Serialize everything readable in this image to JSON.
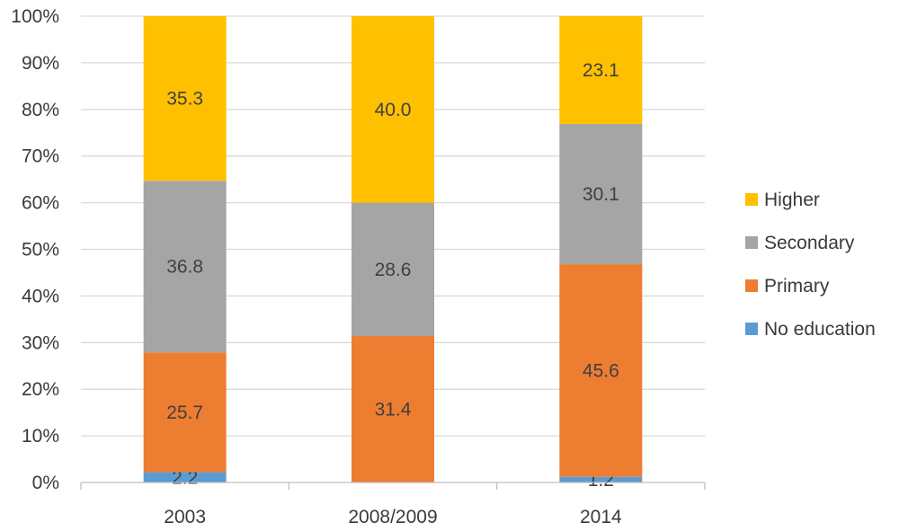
{
  "chart_data": {
    "type": "bar",
    "stacked": true,
    "categories": [
      "2003",
      "2008/2009",
      "2014"
    ],
    "series": [
      {
        "name": "No education",
        "color": "#5B9BD5",
        "values": [
          2.2,
          0,
          1.2
        ],
        "labels": [
          "2.2",
          "",
          "1.2"
        ]
      },
      {
        "name": "Primary",
        "color": "#ED7D31",
        "values": [
          25.7,
          31.4,
          45.6
        ],
        "labels": [
          "25.7",
          "31.4",
          "45.6"
        ]
      },
      {
        "name": "Secondary",
        "color": "#A5A5A5",
        "values": [
          36.8,
          28.6,
          30.1
        ],
        "labels": [
          "36.8",
          "28.6",
          "30.1"
        ]
      },
      {
        "name": "Higher",
        "color": "#FFC000",
        "values": [
          35.3,
          40.0,
          23.1
        ],
        "labels": [
          "35.3",
          "40.0",
          "23.1"
        ]
      }
    ],
    "ylim": [
      0,
      100
    ],
    "yticks": [
      "0%",
      "10%",
      "20%",
      "30%",
      "40%",
      "50%",
      "60%",
      "70%",
      "80%",
      "90%",
      "100%"
    ],
    "grid": true,
    "legend": {
      "position": "right",
      "order": [
        "Higher",
        "Secondary",
        "Primary",
        "No education"
      ]
    }
  }
}
